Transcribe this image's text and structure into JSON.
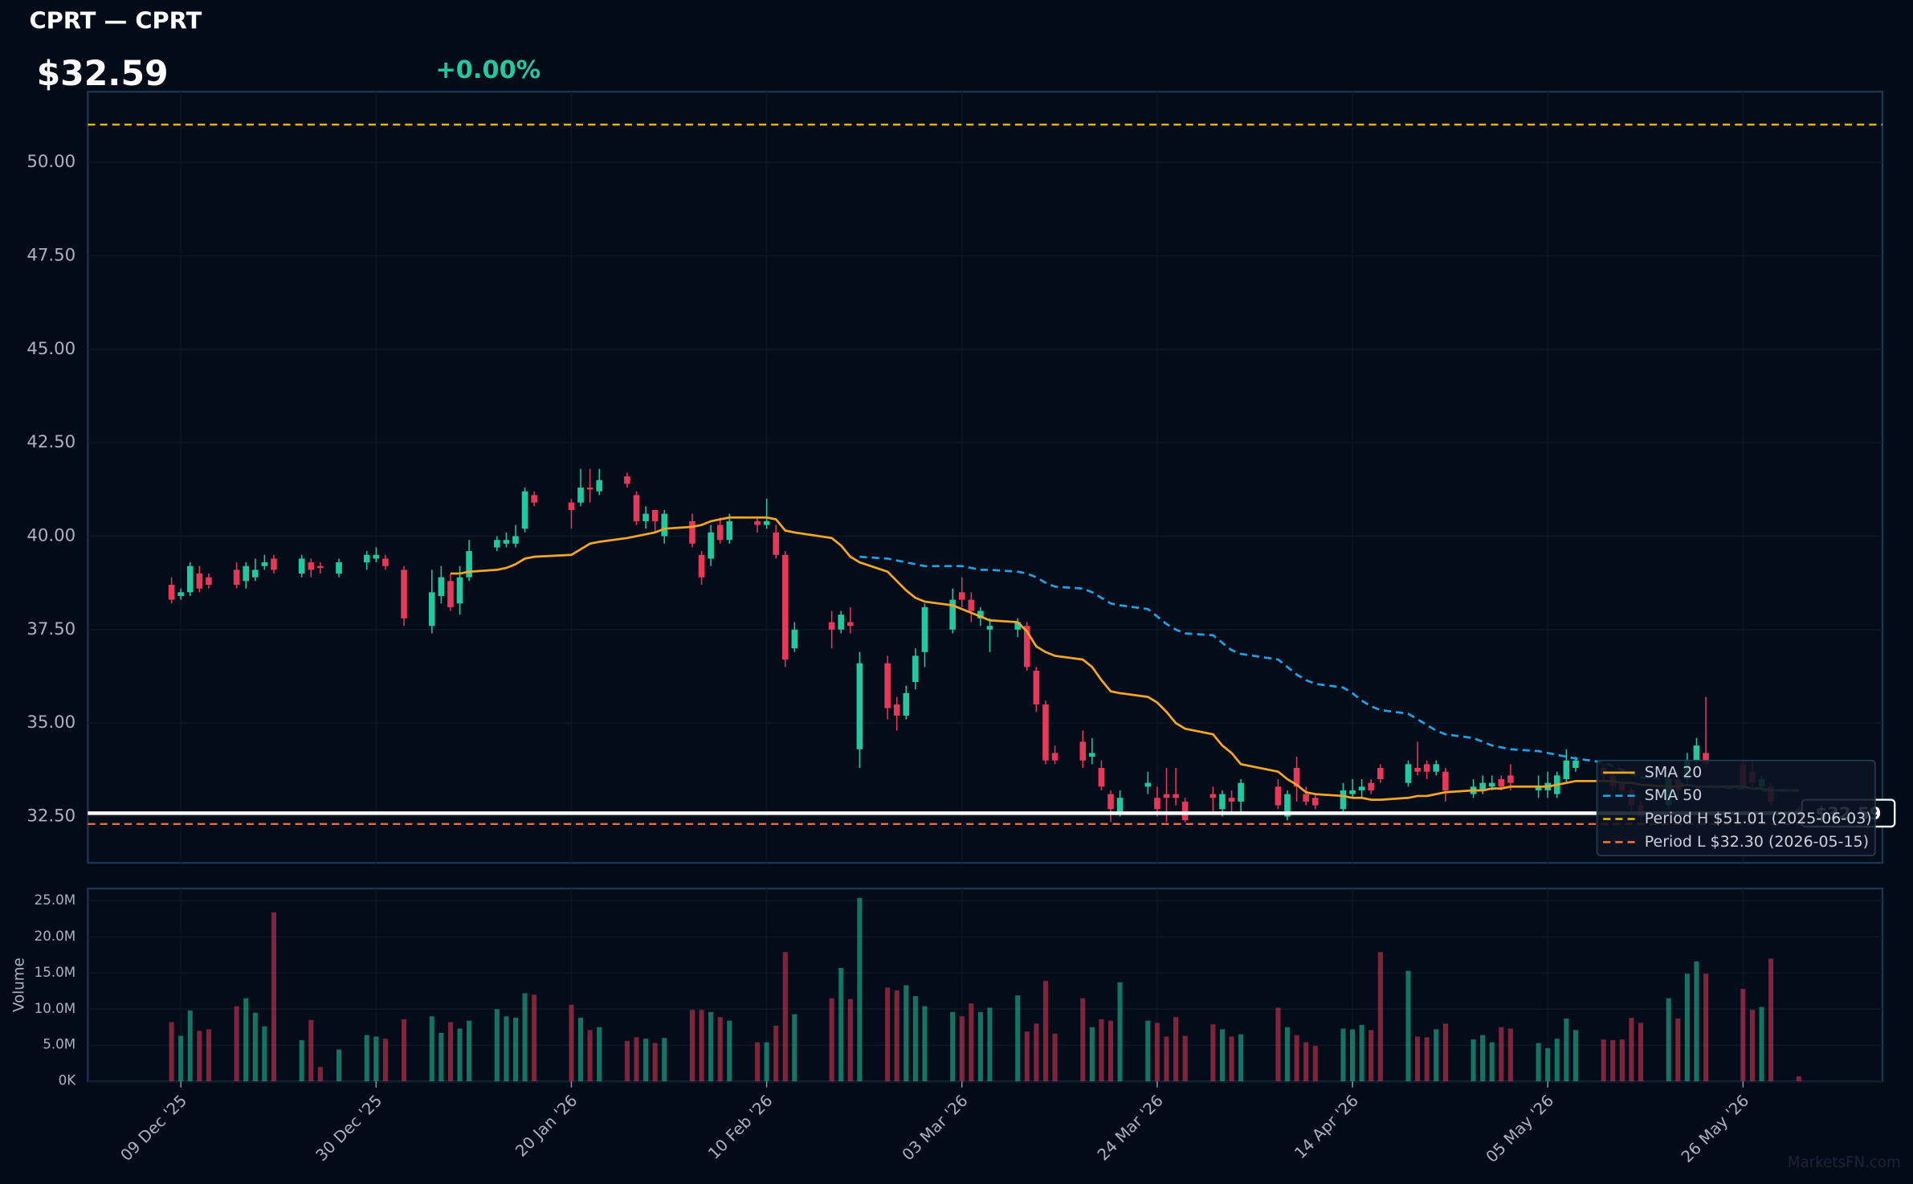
{
  "chart_data": {
    "type": "candlestick",
    "title": "CPRT — CPRT",
    "last_price": {
      "value": 32.59,
      "label": "$32.59"
    },
    "change": {
      "value": 0,
      "label": "+0.00%"
    },
    "watermark": "MarketsFN.com",
    "up_color": "#22c9a0",
    "down_color": "#e8385a",
    "x": [
      "2025-12-08",
      "2025-12-09",
      "2025-12-10",
      "2025-12-11",
      "2025-12-12",
      "2025-12-15",
      "2025-12-16",
      "2025-12-17",
      "2025-12-18",
      "2025-12-19",
      "2025-12-22",
      "2025-12-23",
      "2025-12-24",
      "2025-12-26",
      "2025-12-29",
      "2025-12-30",
      "2025-12-31",
      "2026-01-02",
      "2026-01-05",
      "2026-01-06",
      "2026-01-07",
      "2026-01-08",
      "2026-01-09",
      "2026-01-12",
      "2026-01-13",
      "2026-01-14",
      "2026-01-15",
      "2026-01-16",
      "2026-01-20",
      "2026-01-21",
      "2026-01-22",
      "2026-01-23",
      "2026-01-26",
      "2026-01-27",
      "2026-01-28",
      "2026-01-29",
      "2026-01-30",
      "2026-02-02",
      "2026-02-03",
      "2026-02-04",
      "2026-02-05",
      "2026-02-06",
      "2026-02-09",
      "2026-02-10",
      "2026-02-11",
      "2026-02-12",
      "2026-02-13",
      "2026-02-17",
      "2026-02-18",
      "2026-02-19",
      "2026-02-20",
      "2026-02-23",
      "2026-02-24",
      "2026-02-25",
      "2026-02-26",
      "2026-02-27",
      "2026-03-02",
      "2026-03-03",
      "2026-03-04",
      "2026-03-05",
      "2026-03-06",
      "2026-03-09",
      "2026-03-10",
      "2026-03-11",
      "2026-03-12",
      "2026-03-13",
      "2026-03-16",
      "2026-03-17",
      "2026-03-18",
      "2026-03-19",
      "2026-03-20",
      "2026-03-23",
      "2026-03-24",
      "2026-03-25",
      "2026-03-26",
      "2026-03-27",
      "2026-03-30",
      "2026-03-31",
      "2026-04-01",
      "2026-04-02",
      "2026-04-06",
      "2026-04-07",
      "2026-04-08",
      "2026-04-09",
      "2026-04-10",
      "2026-04-13",
      "2026-04-14",
      "2026-04-15",
      "2026-04-16",
      "2026-04-17",
      "2026-04-20",
      "2026-04-21",
      "2026-04-22",
      "2026-04-23",
      "2026-04-24",
      "2026-04-27",
      "2026-04-28",
      "2026-04-29",
      "2026-04-30",
      "2026-05-01",
      "2026-05-04",
      "2026-05-05",
      "2026-05-06",
      "2026-05-07",
      "2026-05-08",
      "2026-05-11",
      "2026-05-12",
      "2026-05-13",
      "2026-05-14",
      "2026-05-15",
      "2026-05-18",
      "2026-05-19",
      "2026-05-20",
      "2026-05-21",
      "2026-05-22",
      "2026-05-26",
      "2026-05-27",
      "2026-05-28",
      "2026-05-29",
      "2026-06-01"
    ],
    "open": [
      38.7,
      38.4,
      38.5,
      39.0,
      38.9,
      39.1,
      38.8,
      38.9,
      39.2,
      39.4,
      39.0,
      39.3,
      39.2,
      39.0,
      39.3,
      39.4,
      39.4,
      39.1,
      37.6,
      38.4,
      38.8,
      38.2,
      38.9,
      39.7,
      39.8,
      39.8,
      40.2,
      41.1,
      40.9,
      40.9,
      41.3,
      41.2,
      41.6,
      41.1,
      40.4,
      40.7,
      40.0,
      40.4,
      39.5,
      39.4,
      40.3,
      39.9,
      40.4,
      40.3,
      40.1,
      39.5,
      37.0,
      37.7,
      37.5,
      37.7,
      34.3,
      36.6,
      35.5,
      35.2,
      36.1,
      36.9,
      37.5,
      38.5,
      38.3,
      37.8,
      37.5,
      37.5,
      37.6,
      36.4,
      35.5,
      34.2,
      34.5,
      34.1,
      33.8,
      33.1,
      32.6,
      33.3,
      33.0,
      33.1,
      33.1,
      32.9,
      33.1,
      32.7,
      33.0,
      32.9,
      33.3,
      32.5,
      33.8,
      33.1,
      33.0,
      32.7,
      33.1,
      33.2,
      33.4,
      33.8,
      33.4,
      33.8,
      33.9,
      33.7,
      33.7,
      33.1,
      33.2,
      33.3,
      33.5,
      33.6,
      33.2,
      33.2,
      33.1,
      33.5,
      33.8,
      33.8,
      33.6,
      33.4,
      33.2,
      32.8,
      32.8,
      33.5,
      33.5,
      34.0,
      34.2,
      33.9,
      33.7,
      33.3,
      33.3,
      32.7
    ],
    "high": [
      38.9,
      38.6,
      39.3,
      39.2,
      39.0,
      39.3,
      39.3,
      39.4,
      39.5,
      39.5,
      39.5,
      39.4,
      39.3,
      39.4,
      39.6,
      39.7,
      39.5,
      39.2,
      39.1,
      39.2,
      39.0,
      39.2,
      39.9,
      40.0,
      40.1,
      40.3,
      41.3,
      41.2,
      41.0,
      41.8,
      41.8,
      41.8,
      41.7,
      41.2,
      40.8,
      40.7,
      40.7,
      40.6,
      39.6,
      40.3,
      40.5,
      40.6,
      40.5,
      41.0,
      40.3,
      39.6,
      37.7,
      38.0,
      38.0,
      38.1,
      36.9,
      36.8,
      35.7,
      36.0,
      37.0,
      38.2,
      38.6,
      38.9,
      38.5,
      38.1,
      37.8,
      37.8,
      37.7,
      36.5,
      35.6,
      34.4,
      34.8,
      34.6,
      34.0,
      33.2,
      33.2,
      33.7,
      33.3,
      33.8,
      33.8,
      33.0,
      33.3,
      33.2,
      33.2,
      33.5,
      33.5,
      33.2,
      34.1,
      33.3,
      33.1,
      33.4,
      33.5,
      33.5,
      33.5,
      33.9,
      34.0,
      34.5,
      34.0,
      34.0,
      33.8,
      33.5,
      33.6,
      33.6,
      33.6,
      33.9,
      33.6,
      33.7,
      33.7,
      34.3,
      34.1,
      33.9,
      33.7,
      33.5,
      33.3,
      32.9,
      33.6,
      33.7,
      34.2,
      34.6,
      35.7,
      34.0,
      34.0,
      33.6,
      33.4,
      32.8
    ],
    "low": [
      38.2,
      38.3,
      38.4,
      38.5,
      38.6,
      38.6,
      38.6,
      38.8,
      39.1,
      39.0,
      38.9,
      38.9,
      39.0,
      38.9,
      39.1,
      39.3,
      39.1,
      37.6,
      37.4,
      38.2,
      38.0,
      37.9,
      38.8,
      39.6,
      39.7,
      39.7,
      40.1,
      40.8,
      40.2,
      40.8,
      40.9,
      41.1,
      41.3,
      40.3,
      40.2,
      40.1,
      39.8,
      39.7,
      38.7,
      39.2,
      39.8,
      39.8,
      40.1,
      40.2,
      39.4,
      36.5,
      36.9,
      37.0,
      37.4,
      37.4,
      33.8,
      35.1,
      34.8,
      35.1,
      35.9,
      36.5,
      37.4,
      38.1,
      37.7,
      37.6,
      36.9,
      37.3,
      36.4,
      35.3,
      33.9,
      33.9,
      33.8,
      33.9,
      33.2,
      32.35,
      32.5,
      33.1,
      32.5,
      32.35,
      32.8,
      32.35,
      32.6,
      32.5,
      32.6,
      32.6,
      32.7,
      32.4,
      32.9,
      32.8,
      32.7,
      32.6,
      33.0,
      33.0,
      33.1,
      33.4,
      33.3,
      33.6,
      33.5,
      33.6,
      32.9,
      33.0,
      33.1,
      33.2,
      33.2,
      33.2,
      33.0,
      33.0,
      33.0,
      33.4,
      33.7,
      33.4,
      33.2,
      33.0,
      32.6,
      32.3,
      32.7,
      33.0,
      33.4,
      33.9,
      33.8,
      33.2,
      33.3,
      33.2,
      32.8,
      32.5
    ],
    "close": [
      38.3,
      38.5,
      39.2,
      38.6,
      38.7,
      38.7,
      39.2,
      39.1,
      39.3,
      39.1,
      39.4,
      39.1,
      39.15,
      39.3,
      39.5,
      39.5,
      39.2,
      37.8,
      38.5,
      38.9,
      38.1,
      38.9,
      39.6,
      39.9,
      39.9,
      40.0,
      41.2,
      40.9,
      40.7,
      41.3,
      41.25,
      41.5,
      41.4,
      40.4,
      40.6,
      40.4,
      40.6,
      39.8,
      38.9,
      40.1,
      39.9,
      40.4,
      40.3,
      40.4,
      39.5,
      36.7,
      37.5,
      37.5,
      37.9,
      37.6,
      36.6,
      35.4,
      35.2,
      35.8,
      36.8,
      38.1,
      38.3,
      38.3,
      38.0,
      38.0,
      37.6,
      37.7,
      36.5,
      35.5,
      34.0,
      34.0,
      34.0,
      34.2,
      33.3,
      32.7,
      33.0,
      33.4,
      32.7,
      33.0,
      33.0,
      32.4,
      33.0,
      33.1,
      32.9,
      33.4,
      32.8,
      33.1,
      33.3,
      32.9,
      32.8,
      33.2,
      33.2,
      33.3,
      33.2,
      33.5,
      33.9,
      33.7,
      33.7,
      33.9,
      33.2,
      33.3,
      33.4,
      33.4,
      33.3,
      33.4,
      33.3,
      33.4,
      33.6,
      34.0,
      34.0,
      33.6,
      33.3,
      33.2,
      32.8,
      32.5,
      33.5,
      33.2,
      34.0,
      34.4,
      33.9,
      33.3,
      33.4,
      33.5,
      32.9,
      32.59
    ],
    "volume": [
      8.2,
      6.3,
      9.8,
      7.0,
      7.2,
      10.4,
      11.5,
      9.5,
      7.6,
      23.4,
      5.7,
      8.5,
      2.0,
      4.4,
      6.4,
      6.2,
      5.9,
      8.6,
      9.0,
      6.7,
      8.2,
      7.3,
      8.4,
      10.0,
      9.0,
      8.8,
      12.2,
      12.0,
      10.6,
      8.8,
      7.1,
      7.5,
      5.6,
      6.1,
      5.9,
      5.3,
      6.0,
      9.9,
      9.9,
      9.6,
      8.9,
      8.4,
      5.4,
      5.4,
      7.7,
      17.9,
      9.3,
      11.5,
      15.7,
      11.4,
      25.4,
      13.0,
      12.6,
      13.3,
      11.8,
      10.4,
      9.6,
      9.0,
      10.8,
      9.6,
      10.2,
      11.9,
      6.9,
      8.0,
      13.9,
      6.6,
      11.5,
      7.5,
      8.6,
      8.4,
      13.7,
      8.4,
      8.1,
      6.2,
      8.9,
      6.3,
      7.9,
      7.2,
      6.2,
      6.5,
      10.2,
      7.5,
      6.4,
      5.4,
      4.9,
      7.3,
      7.2,
      7.8,
      7.1,
      17.9,
      15.3,
      6.2,
      6.1,
      7.2,
      8.0,
      5.8,
      6.4,
      5.4,
      7.5,
      7.3,
      5.3,
      4.6,
      5.9,
      8.7,
      7.1,
      5.8,
      5.7,
      5.8,
      8.8,
      8.1,
      11.5,
      8.7,
      14.9,
      16.6,
      14.9,
      12.8,
      9.9,
      10.3,
      17.0,
      0.7
    ],
    "overlays": [
      {
        "name": "SMA 20",
        "color": "#f5a623",
        "style": "solid",
        "values": [
          null,
          null,
          null,
          null,
          null,
          null,
          null,
          null,
          null,
          null,
          null,
          null,
          null,
          null,
          null,
          null,
          null,
          null,
          null,
          null,
          39.0,
          39.0,
          39.05,
          39.1,
          39.15,
          39.25,
          39.4,
          39.45,
          39.5,
          39.65,
          39.8,
          39.85,
          39.95,
          40.0,
          40.05,
          40.1,
          40.2,
          40.25,
          40.3,
          40.4,
          40.45,
          40.5,
          40.5,
          40.5,
          40.45,
          40.15,
          40.1,
          39.95,
          39.75,
          39.45,
          39.3,
          39.05,
          38.8,
          38.55,
          38.35,
          38.25,
          38.15,
          38.05,
          37.95,
          37.85,
          37.75,
          37.7,
          37.45,
          37.05,
          36.9,
          36.8,
          36.7,
          36.5,
          36.15,
          35.85,
          35.8,
          35.7,
          35.55,
          35.3,
          35.0,
          34.85,
          34.7,
          34.4,
          34.2,
          33.9,
          33.7,
          33.5,
          33.35,
          33.15,
          33.1,
          33.05,
          33.0,
          33.0,
          32.95,
          32.95,
          33.0,
          33.05,
          33.05,
          33.1,
          33.15,
          33.2,
          33.2,
          33.25,
          33.25,
          33.3,
          33.3,
          33.3,
          33.35,
          33.4,
          33.45,
          33.45,
          33.45,
          33.4,
          33.4,
          33.35,
          33.3,
          33.3,
          33.35,
          33.3,
          33.3,
          33.3,
          33.25,
          33.25,
          33.2,
          33.2
        ]
      },
      {
        "name": "SMA 50",
        "color": "#1aa3e8",
        "style": "dashed",
        "values": [
          null,
          null,
          null,
          null,
          null,
          null,
          null,
          null,
          null,
          null,
          null,
          null,
          null,
          null,
          null,
          null,
          null,
          null,
          null,
          null,
          null,
          null,
          null,
          null,
          null,
          null,
          null,
          null,
          null,
          null,
          null,
          null,
          null,
          null,
          null,
          null,
          null,
          null,
          null,
          null,
          null,
          null,
          null,
          null,
          null,
          null,
          null,
          null,
          null,
          null,
          39.45,
          39.4,
          39.35,
          39.3,
          39.25,
          39.2,
          39.2,
          39.2,
          39.15,
          39.1,
          39.1,
          39.05,
          39.0,
          38.9,
          38.75,
          38.65,
          38.6,
          38.5,
          38.35,
          38.2,
          38.15,
          38.05,
          37.85,
          37.65,
          37.5,
          37.4,
          37.35,
          37.15,
          36.95,
          36.85,
          36.7,
          36.5,
          36.3,
          36.15,
          36.05,
          35.95,
          35.8,
          35.6,
          35.45,
          35.35,
          35.25,
          35.1,
          34.95,
          34.8,
          34.7,
          34.6,
          34.5,
          34.4,
          34.35,
          34.3,
          34.25,
          34.2,
          34.15,
          34.1,
          34.05,
          33.95,
          33.85,
          33.75,
          33.65,
          33.55,
          33.5,
          33.4,
          33.35,
          33.3,
          33.3,
          33.25,
          33.25,
          33.2,
          33.2,
          33.2
        ]
      }
    ],
    "reference_lines": [
      {
        "name": "Period H $51.01 (2025-06-03)",
        "value": 51.01,
        "color": "#e6b400",
        "style": "dashed"
      },
      {
        "name": "Period L $32.30 (2026-05-15)",
        "value": 32.3,
        "color": "#f26b3a",
        "style": "dashed"
      }
    ],
    "xlim": [
      "2025-11-29",
      "2026-06-10"
    ],
    "xticks": [
      {
        "value": "2025-12-09",
        "label": "09 Dec '25"
      },
      {
        "value": "2025-12-30",
        "label": "30 Dec '25"
      },
      {
        "value": "2026-01-20",
        "label": "20 Jan '26"
      },
      {
        "value": "2026-02-10",
        "label": "10 Feb '26"
      },
      {
        "value": "2026-03-03",
        "label": "03 Mar '26"
      },
      {
        "value": "2026-03-24",
        "label": "24 Mar '26"
      },
      {
        "value": "2026-04-14",
        "label": "14 Apr '26"
      },
      {
        "value": "2026-05-05",
        "label": "05 May '26"
      },
      {
        "value": "2026-05-26",
        "label": "26 May '26"
      }
    ],
    "ylim": [
      31.26,
      51.89
    ],
    "yticks": [
      {
        "value": 32.5,
        "label": "32.50"
      },
      {
        "value": 35,
        "label": "35.00"
      },
      {
        "value": 37.5,
        "label": "37.50"
      },
      {
        "value": 40,
        "label": "40.00"
      },
      {
        "value": 42.5,
        "label": "42.50"
      },
      {
        "value": 45,
        "label": "45.00"
      },
      {
        "value": 47.5,
        "label": "47.50"
      },
      {
        "value": 50,
        "label": "50.00"
      }
    ],
    "volume_label": "Volume",
    "volume_ylim": [
      0,
      26.7
    ],
    "volume_yticks": [
      {
        "value": 0,
        "label": "0K"
      },
      {
        "value": 5,
        "label": "5.0M"
      },
      {
        "value": 10,
        "label": "10.0M"
      },
      {
        "value": 15,
        "label": "15.0M"
      },
      {
        "value": 20,
        "label": "20.0M"
      },
      {
        "value": 25,
        "label": "25.0M"
      }
    ],
    "grid": true
  }
}
